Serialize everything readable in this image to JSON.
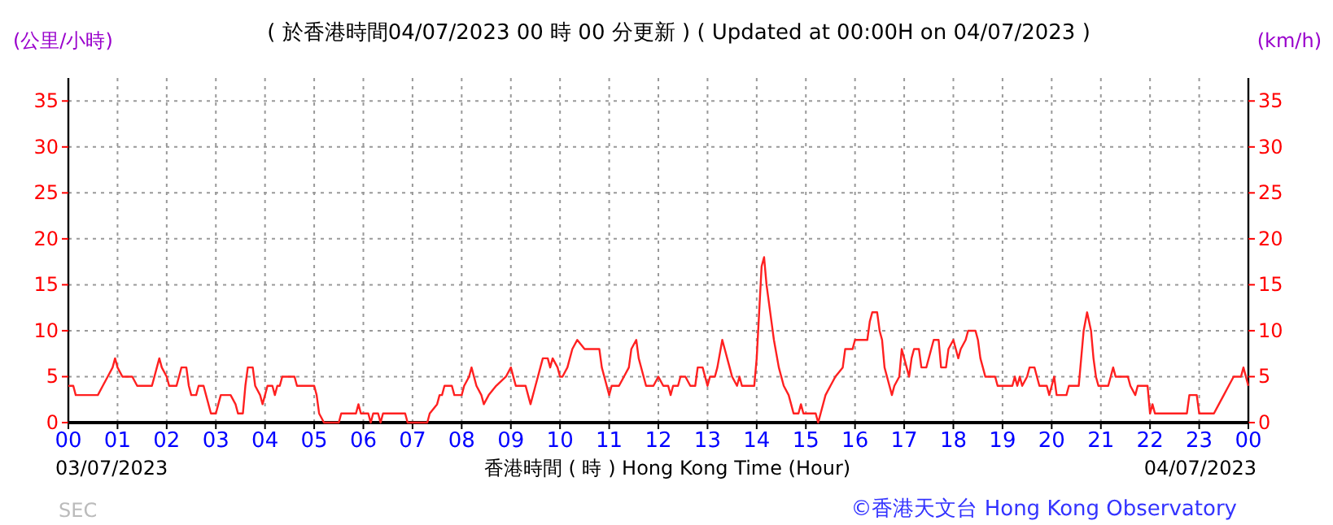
{
  "chart_data": {
    "type": "line",
    "title": "( 於香港時間04/07/2023 00 時 00 分更新 ) ( Updated at 00:00H on 04/07/2023 )",
    "xlabel": "香港時間 ( 時 ) Hong Kong Time (Hour)",
    "ylabel": "(公里/小時)",
    "y2label": "(km/h)",
    "annotations": [
      "03/07/2023",
      "04/07/2023",
      "©香港天文台 Hong Kong Observatory",
      "SEC"
    ],
    "xlim": [
      0,
      24
    ],
    "xticks": [
      {
        "value": 0,
        "label": "00"
      },
      {
        "value": 1,
        "label": "01"
      },
      {
        "value": 2,
        "label": "02"
      },
      {
        "value": 3,
        "label": "03"
      },
      {
        "value": 4,
        "label": "04"
      },
      {
        "value": 5,
        "label": "05"
      },
      {
        "value": 6,
        "label": "06"
      },
      {
        "value": 7,
        "label": "07"
      },
      {
        "value": 8,
        "label": "08"
      },
      {
        "value": 9,
        "label": "09"
      },
      {
        "value": 10,
        "label": "10"
      },
      {
        "value": 11,
        "label": "11"
      },
      {
        "value": 12,
        "label": "12"
      },
      {
        "value": 13,
        "label": "13"
      },
      {
        "value": 14,
        "label": "14"
      },
      {
        "value": 15,
        "label": "15"
      },
      {
        "value": 16,
        "label": "16"
      },
      {
        "value": 17,
        "label": "17"
      },
      {
        "value": 18,
        "label": "18"
      },
      {
        "value": 19,
        "label": "19"
      },
      {
        "value": 20,
        "label": "20"
      },
      {
        "value": 21,
        "label": "21"
      },
      {
        "value": 22,
        "label": "22"
      },
      {
        "value": 23,
        "label": "23"
      },
      {
        "value": 24,
        "label": "00"
      }
    ],
    "ylim": [
      0,
      37.5
    ],
    "yticks": [
      0,
      5,
      10,
      15,
      20,
      25,
      30,
      35
    ],
    "y2lim": [
      0,
      37.5
    ],
    "y2ticks": [
      0,
      5,
      10,
      15,
      20,
      25,
      30,
      35
    ],
    "grid": true,
    "marker": "none",
    "line_style": "solid",
    "series": [
      {
        "color": "#ff2020",
        "x": [
          0,
          0.1,
          0.15,
          0.6,
          0.7,
          0.8,
          0.9,
          0.95,
          1.0,
          1.1,
          1.3,
          1.4,
          1.7,
          1.75,
          1.8,
          1.85,
          1.9,
          2.0,
          2.05,
          2.2,
          2.25,
          2.3,
          2.4,
          2.45,
          2.5,
          2.6,
          2.65,
          2.75,
          2.8,
          2.9,
          3.0,
          3.05,
          3.1,
          3.3,
          3.4,
          3.45,
          3.55,
          3.6,
          3.65,
          3.75,
          3.8,
          3.9,
          3.95,
          4.0,
          4.05,
          4.15,
          4.2,
          4.25,
          4.3,
          4.35,
          4.6,
          4.65,
          5.0,
          5.05,
          5.1,
          5.2,
          5.5,
          5.55,
          5.85,
          5.9,
          5.95,
          6.1,
          6.15,
          6.2,
          6.3,
          6.35,
          6.4,
          6.85,
          6.9,
          7.3,
          7.35,
          7.5,
          7.55,
          7.6,
          7.65,
          7.8,
          7.85,
          8.0,
          8.05,
          8.15,
          8.2,
          8.25,
          8.3,
          8.4,
          8.45,
          8.55,
          8.7,
          8.9,
          9.0,
          9.05,
          9.1,
          9.3,
          9.35,
          9.4,
          9.5,
          9.55,
          9.6,
          9.65,
          9.75,
          9.8,
          9.85,
          9.95,
          10.0,
          10.05,
          10.15,
          10.25,
          10.35,
          10.5,
          10.8,
          10.85,
          10.95,
          11.0,
          11.05,
          11.2,
          11.3,
          11.4,
          11.45,
          11.55,
          11.6,
          11.7,
          11.75,
          11.9,
          12.0,
          12.1,
          12.2,
          12.25,
          12.3,
          12.4,
          12.45,
          12.55,
          12.65,
          12.75,
          12.8,
          12.9,
          13.0,
          13.05,
          13.15,
          13.2,
          13.3,
          13.35,
          13.4,
          13.45,
          13.5,
          13.6,
          13.65,
          13.7,
          13.95,
          14.0,
          14.05,
          14.1,
          14.15,
          14.2,
          14.3,
          14.35,
          14.45,
          14.55,
          14.65,
          14.7,
          14.75,
          14.85,
          14.9,
          14.95,
          15.05,
          15.2,
          15.25,
          15.3,
          15.4,
          15.5,
          15.6,
          15.75,
          15.8,
          15.95,
          16.0,
          16.25,
          16.3,
          16.35,
          16.45,
          16.5,
          16.55,
          16.6,
          16.7,
          16.75,
          16.8,
          16.9,
          16.95,
          17.0,
          17.05,
          17.1,
          17.15,
          17.2,
          17.3,
          17.35,
          17.45,
          17.55,
          17.6,
          17.7,
          17.75,
          17.85,
          17.9,
          18.0,
          18.05,
          18.1,
          18.15,
          18.25,
          18.3,
          18.45,
          18.5,
          18.55,
          18.6,
          18.65,
          18.85,
          18.9,
          19.2,
          19.25,
          19.3,
          19.35,
          19.4,
          19.5,
          19.55,
          19.65,
          19.7,
          19.75,
          19.9,
          19.95,
          20.0,
          20.05,
          20.1,
          20.3,
          20.35,
          20.55,
          20.6,
          20.65,
          20.72,
          20.8,
          20.85,
          20.9,
          20.95,
          21.15,
          21.2,
          21.25,
          21.3,
          21.55,
          21.6,
          21.7,
          21.75,
          21.95,
          22.0,
          22.05,
          22.1,
          22.75,
          22.8,
          22.95,
          23.0,
          23.3,
          23.4,
          23.5,
          23.6,
          23.7,
          23.85,
          23.9,
          23.95,
          24
        ],
        "values": [
          4,
          4,
          3,
          3,
          4,
          5,
          6,
          7,
          6,
          5,
          5,
          4,
          4,
          5,
          6,
          7,
          6,
          5,
          4,
          4,
          5,
          6,
          6,
          4,
          3,
          3,
          4,
          4,
          3,
          1,
          1,
          2,
          3,
          3,
          2,
          1,
          1,
          4,
          6,
          6,
          4,
          3,
          2,
          3,
          4,
          4,
          3,
          4,
          4,
          5,
          5,
          4,
          4,
          3,
          1,
          0,
          0,
          1,
          1,
          2,
          1,
          1,
          0,
          1,
          1,
          0,
          1,
          1,
          0,
          0,
          1,
          2,
          3,
          3,
          4,
          4,
          3,
          3,
          4,
          5,
          6,
          5,
          4,
          3,
          2,
          3,
          4,
          5,
          6,
          5,
          4,
          4,
          3,
          2,
          4,
          5,
          6,
          7,
          7,
          6,
          7,
          6,
          5,
          5,
          6,
          8,
          9,
          8,
          8,
          6,
          4,
          3,
          4,
          4,
          5,
          6,
          8,
          9,
          7,
          5,
          4,
          4,
          5,
          4,
          4,
          3,
          4,
          4,
          5,
          5,
          4,
          4,
          6,
          6,
          4,
          5,
          5,
          6,
          9,
          8,
          7,
          6,
          5,
          4,
          5,
          4,
          4,
          7,
          12,
          17,
          18,
          15,
          11,
          9,
          6,
          4,
          3,
          2,
          1,
          1,
          2,
          1,
          1,
          1,
          0,
          1,
          3,
          4,
          5,
          6,
          8,
          8,
          9,
          9,
          11,
          12,
          12,
          10,
          9,
          6,
          4,
          3,
          4,
          5,
          8,
          7,
          6,
          5,
          7,
          8,
          8,
          6,
          6,
          8,
          9,
          9,
          6,
          6,
          8,
          9,
          8,
          7,
          8,
          9,
          10,
          10,
          9,
          7,
          6,
          5,
          5,
          4,
          4,
          5,
          4,
          5,
          4,
          5,
          6,
          6,
          5,
          4,
          4,
          3,
          4,
          5,
          3,
          3,
          4,
          4,
          7,
          10,
          12,
          10,
          7,
          5,
          4,
          4,
          5,
          6,
          5,
          5,
          4,
          3,
          4,
          4,
          1,
          2,
          1,
          1,
          3,
          3,
          1,
          1,
          2,
          3,
          4,
          5,
          5,
          6,
          5,
          4
        ]
      }
    ]
  }
}
